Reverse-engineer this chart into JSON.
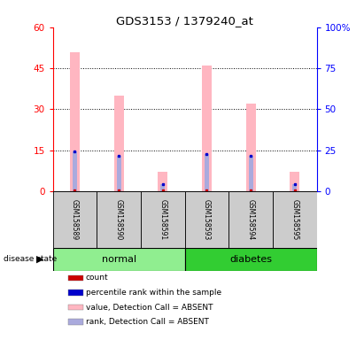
{
  "title": "GDS3153 / 1379240_at",
  "samples": [
    "GSM158589",
    "GSM158590",
    "GSM158591",
    "GSM158593",
    "GSM158594",
    "GSM158595"
  ],
  "groups": [
    "normal",
    "normal",
    "normal",
    "diabetes",
    "diabetes",
    "diabetes"
  ],
  "normal_color": "#90EE90",
  "diabetes_color": "#32CD32",
  "pink_bar_values": [
    51,
    35,
    7,
    46,
    32,
    7
  ],
  "blue_bar_values": [
    14.5,
    13,
    2.5,
    13.5,
    13,
    2.5
  ],
  "ylim_left": [
    0,
    60
  ],
  "ylim_right": [
    0,
    100
  ],
  "yticks_left": [
    0,
    15,
    30,
    45,
    60
  ],
  "ytick_labels_left": [
    "0",
    "15",
    "30",
    "45",
    "60"
  ],
  "yticks_right": [
    0,
    25,
    50,
    75,
    100
  ],
  "ytick_labels_right": [
    "0",
    "25",
    "50",
    "75",
    "100%"
  ],
  "grid_values": [
    15,
    30,
    45
  ],
  "background_color": "#ffffff",
  "pink_color": "#FFB6C1",
  "blue_bar_color": "#AAAADD",
  "red_marker_color": "#CC0000",
  "blue_marker_color": "#0000CC",
  "legend_items": [
    {
      "label": "count",
      "color": "#CC0000"
    },
    {
      "label": "percentile rank within the sample",
      "color": "#0000CC"
    },
    {
      "label": "value, Detection Call = ABSENT",
      "color": "#FFB6C1"
    },
    {
      "label": "rank, Detection Call = ABSENT",
      "color": "#AAAADD"
    }
  ]
}
